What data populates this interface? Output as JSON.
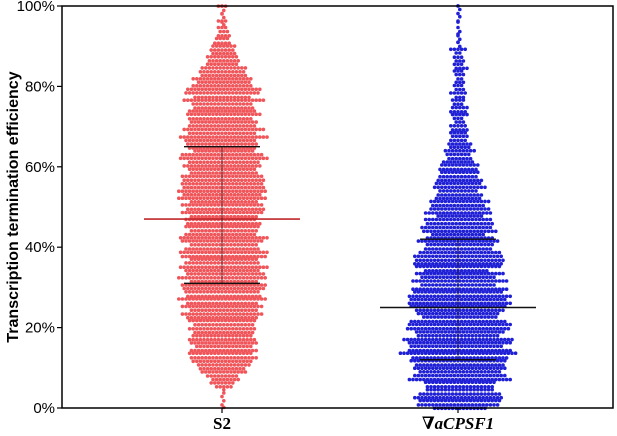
{
  "chart_data": {
    "type": "scatter",
    "subtype": "beeswarm",
    "title": "",
    "xlabel": "",
    "ylabel": "Transcription termination efficiency",
    "ylim": [
      0,
      100
    ],
    "yticks": [
      "0%",
      "20%",
      "40%",
      "60%",
      "80%",
      "100%"
    ],
    "grid": false,
    "legend": "none",
    "categories": [
      "S2",
      "∇aCPSF1"
    ],
    "series": [
      {
        "category": "S2",
        "color": "#f0555a",
        "n_points": 1400,
        "range": [
          0,
          100
        ],
        "median": 47,
        "q1": 31,
        "q3": 65,
        "density_profile": "broad, roughly uniform from ~15% to ~80%, tapering to ~0% and ~95%"
      },
      {
        "category": "∇aCPSF1",
        "color": "#1f1fd6",
        "n_points": 1400,
        "range": [
          0,
          100
        ],
        "median": 25,
        "q1": 12,
        "q3": 42,
        "density_profile": "concentrated between ~5% and ~40%, sparse above 70%"
      }
    ],
    "median_line_colors": [
      "#c0282c",
      "#111111"
    ],
    "quartile_line_color": "#111111"
  }
}
